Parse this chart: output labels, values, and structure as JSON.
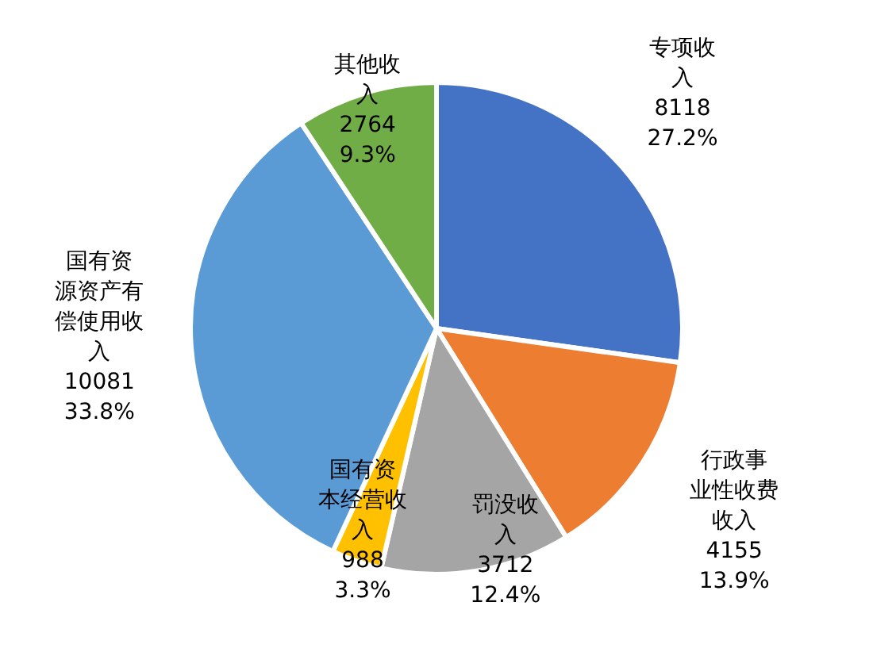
{
  "chart_data": {
    "type": "pie",
    "categories": [
      "专项收入",
      "行政事业性收费收入",
      "罚没收入",
      "国有资本经营收入",
      "国有资源资产有偿使用收入",
      "其他收入"
    ],
    "values": [
      8118,
      4155,
      3712,
      988,
      10081,
      2764
    ],
    "value_labels": [
      "8118\n27.2%",
      "4155\n13.9%",
      "3712\n12.4%",
      "988\n3.3%",
      "10081\n33.8%",
      "2764\n9.3%"
    ],
    "colors": [
      "#4472c4",
      "#ed7d31",
      "#a5a5a5",
      "#ffc000",
      "#5b9bd5",
      "#70ad47"
    ]
  }
}
